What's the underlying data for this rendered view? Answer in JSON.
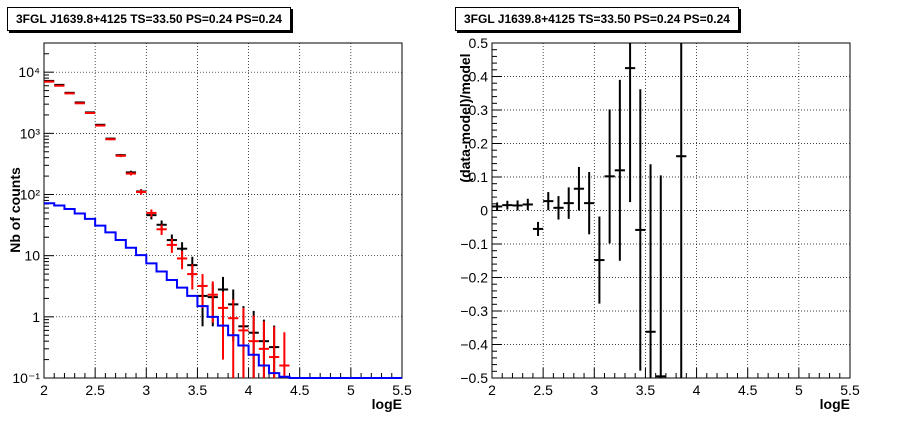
{
  "chart_data": [
    {
      "type": "scatter",
      "title": "3FGL J1639.8+4125 TS=33.50 PS=0.24 PS=0.24",
      "xlabel": "logE",
      "ylabel": "Nb of counts",
      "xlim": [
        2,
        5.5
      ],
      "ylim": [
        0.1,
        30000
      ],
      "yscale": "log",
      "grid": true,
      "xticks": [
        "2",
        "2.5",
        "3",
        "3.5",
        "4",
        "4.5",
        "5",
        "5.5"
      ],
      "yticks": [
        {
          "value": 0.1,
          "label": "10⁻¹"
        },
        {
          "value": 1,
          "label": "1"
        },
        {
          "value": 10,
          "label": "10"
        },
        {
          "value": 100,
          "label": "10²"
        },
        {
          "value": 1000,
          "label": "10³"
        },
        {
          "value": 10000,
          "label": "10⁴"
        }
      ],
      "series": [
        {
          "color": "#000000",
          "kind": "errorbar",
          "x": [
            2.05,
            2.15,
            2.25,
            2.35,
            2.45,
            2.55,
            2.65,
            2.75,
            2.85,
            2.95,
            3.05,
            3.15,
            3.25,
            3.35,
            3.45,
            3.55,
            3.65,
            3.75,
            3.85,
            3.95,
            4.05,
            4.15,
            4.25
          ],
          "y": [
            7200,
            6200,
            4600,
            3200,
            2200,
            1380,
            820,
            440,
            230,
            112,
            46,
            32,
            18,
            13,
            7,
            2.2,
            2.1,
            2.8,
            1.6,
            0.7,
            0.55,
            0.4,
            0.32
          ],
          "yerr_low": [
            85,
            80,
            68,
            56,
            47,
            37,
            29,
            21,
            15,
            10.6,
            6.8,
            5.6,
            4.2,
            3.6,
            2.6,
            1.5,
            1.4,
            1.7,
            1.2,
            0.7,
            0.55,
            0.4,
            0.32
          ],
          "yerr_high": [
            85,
            80,
            68,
            56,
            47,
            37,
            29,
            21,
            15,
            10.6,
            6.8,
            5.6,
            4.2,
            3.6,
            2.6,
            1.5,
            1.4,
            1.7,
            1.2,
            0.8,
            0.7,
            0.5,
            0.4
          ]
        },
        {
          "color": "#ff0000",
          "kind": "errorbar",
          "x": [
            2.05,
            2.15,
            2.25,
            2.35,
            2.45,
            2.55,
            2.65,
            2.75,
            2.85,
            2.95,
            3.05,
            3.15,
            3.25,
            3.35,
            3.45,
            3.55,
            3.65,
            3.75,
            3.85,
            3.95,
            4.05,
            4.15,
            4.25,
            4.35
          ],
          "y": [
            7000,
            6000,
            4500,
            3100,
            2150,
            1340,
            800,
            430,
            220,
            110,
            50,
            27,
            15,
            9,
            5,
            3.2,
            2.3,
            1.4,
            0.95,
            0.6,
            0.4,
            0.3,
            0.22,
            0.16
          ],
          "yerr_low": [
            84,
            78,
            67,
            56,
            46,
            37,
            28,
            21,
            15,
            10.5,
            7,
            5.2,
            3.9,
            3,
            2.2,
            1.8,
            1.5,
            1.2,
            0.95,
            0.6,
            0.4,
            0.3,
            0.22,
            0.16
          ],
          "yerr_high": [
            84,
            78,
            67,
            56,
            46,
            37,
            28,
            21,
            15,
            10.5,
            7,
            5.2,
            3.9,
            3,
            2.2,
            1.8,
            1.5,
            1.2,
            0.97,
            0.8,
            0.65,
            0.55,
            0.47,
            0.4
          ]
        },
        {
          "color": "#0000ff",
          "kind": "step",
          "edges": [
            2.0,
            2.1,
            2.2,
            2.3,
            2.4,
            2.5,
            2.6,
            2.7,
            2.8,
            2.9,
            3.0,
            3.1,
            3.2,
            3.3,
            3.4,
            3.5,
            3.6,
            3.7,
            3.8,
            3.9,
            4.0,
            4.1,
            4.2,
            4.3,
            4.4,
            5.5
          ],
          "values": [
            72,
            66,
            58,
            49,
            40,
            31,
            24,
            18,
            13.5,
            10.2,
            7.5,
            5.5,
            4,
            3,
            2.2,
            1.5,
            1,
            0.72,
            0.5,
            0.34,
            0.24,
            0.16,
            0.12,
            0.105,
            0.1
          ]
        }
      ]
    },
    {
      "type": "scatter",
      "title": "3FGL J1639.8+4125 TS=33.50 PS=0.24 PS=0.24",
      "xlabel": "logE",
      "ylabel": "(data-model)/model",
      "xlim": [
        2,
        5.5
      ],
      "ylim": [
        -0.5,
        0.5
      ],
      "grid": true,
      "xticks": [
        "2",
        "2.5",
        "3",
        "3.5",
        "4",
        "4.5",
        "5",
        "5.5"
      ],
      "yticks": [
        "−0.5",
        "−0.4",
        "−0.3",
        "−0.2",
        "−0.1",
        "0",
        "0.1",
        "0.2",
        "0.3",
        "0.4",
        "0.5"
      ],
      "series": [
        {
          "color": "#000000",
          "kind": "errorbar",
          "x": [
            2.05,
            2.15,
            2.25,
            2.35,
            2.45,
            2.55,
            2.65,
            2.75,
            2.85,
            2.95,
            3.05,
            3.15,
            3.25,
            3.35,
            3.45,
            3.55,
            3.65,
            3.85
          ],
          "y": [
            0.012,
            0.016,
            0.015,
            0.018,
            -0.055,
            0.028,
            0.008,
            0.022,
            0.065,
            0.022,
            -0.148,
            0.102,
            0.12,
            0.425,
            -0.058,
            -0.362,
            -0.495,
            0.162
          ],
          "yerr": [
            0.012,
            0.013,
            0.015,
            0.017,
            0.021,
            0.027,
            0.035,
            0.047,
            0.065,
            0.093,
            0.13,
            0.2,
            0.27,
            0.4,
            0.42,
            0.5,
            0.6,
            0.7
          ]
        }
      ]
    }
  ]
}
